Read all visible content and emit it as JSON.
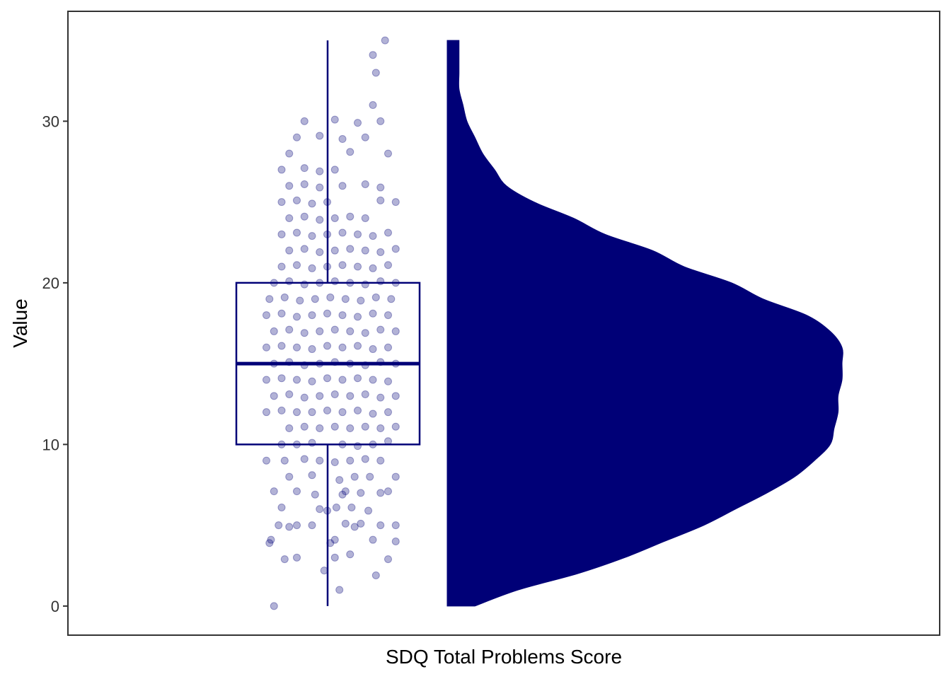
{
  "chart_data": {
    "type": "raincloud",
    "title": "",
    "xlabel": "SDQ Total Problems Score",
    "ylabel": "Value",
    "ylim": [
      -1.8,
      36.8
    ],
    "yticks": [
      0,
      10,
      20,
      30
    ],
    "grid": false,
    "legend": "none",
    "color": "#000077",
    "point_opacity": 0.3,
    "boxplot": {
      "min": 0,
      "q1": 10,
      "median": 15,
      "q3": 20,
      "max": 35
    },
    "density": {
      "y": [
        0,
        1,
        2,
        3,
        4,
        5,
        6,
        7,
        8,
        9,
        10,
        11,
        12,
        13,
        14,
        15,
        16,
        17,
        18,
        19,
        20,
        21,
        22,
        23,
        24,
        25,
        26,
        27,
        28,
        29,
        30,
        31,
        32,
        33,
        34,
        35
      ],
      "rel": [
        0.07,
        0.18,
        0.33,
        0.45,
        0.55,
        0.65,
        0.73,
        0.81,
        0.88,
        0.93,
        0.97,
        0.98,
        0.99,
        0.99,
        1.0,
        1.0,
        1.0,
        0.97,
        0.91,
        0.8,
        0.72,
        0.6,
        0.52,
        0.4,
        0.32,
        0.22,
        0.15,
        0.12,
        0.09,
        0.07,
        0.05,
        0.04,
        0.03,
        0.03,
        0.03,
        0.03
      ]
    },
    "points": [
      [
        0.82,
        33
      ],
      [
        0.8,
        34.1
      ],
      [
        0.88,
        35
      ],
      [
        0.15,
        0
      ],
      [
        0.58,
        1
      ],
      [
        0.82,
        1.9
      ],
      [
        0.48,
        2.2
      ],
      [
        0.9,
        2.9
      ],
      [
        0.22,
        2.9
      ],
      [
        0.3,
        3
      ],
      [
        0.55,
        3
      ],
      [
        0.65,
        3.2
      ],
      [
        0.12,
        3.9
      ],
      [
        0.52,
        3.9
      ],
      [
        0.95,
        4
      ],
      [
        0.13,
        4.1
      ],
      [
        0.8,
        4.1
      ],
      [
        0.55,
        4.1
      ],
      [
        0.18,
        5
      ],
      [
        0.3,
        5
      ],
      [
        0.4,
        5
      ],
      [
        0.62,
        5.1
      ],
      [
        0.85,
        5
      ],
      [
        0.95,
        5
      ],
      [
        0.25,
        4.9
      ],
      [
        0.68,
        4.9
      ],
      [
        0.72,
        5.1
      ],
      [
        0.2,
        6.1
      ],
      [
        0.45,
        6
      ],
      [
        0.5,
        5.9
      ],
      [
        0.56,
        6.1
      ],
      [
        0.66,
        6.1
      ],
      [
        0.77,
        5.9
      ],
      [
        0.15,
        7.1
      ],
      [
        0.3,
        7.1
      ],
      [
        0.42,
        6.9
      ],
      [
        0.62,
        7.1
      ],
      [
        0.9,
        7.1
      ],
      [
        0.6,
        6.9
      ],
      [
        0.85,
        7
      ],
      [
        0.72,
        7
      ],
      [
        0.25,
        8
      ],
      [
        0.4,
        8.1
      ],
      [
        0.58,
        7.8
      ],
      [
        0.68,
        8
      ],
      [
        0.78,
        8
      ],
      [
        0.95,
        8
      ],
      [
        0.1,
        9
      ],
      [
        0.22,
        9
      ],
      [
        0.35,
        9.1
      ],
      [
        0.45,
        9
      ],
      [
        0.55,
        8.9
      ],
      [
        0.65,
        9
      ],
      [
        0.75,
        9.1
      ],
      [
        0.85,
        9
      ],
      [
        0.2,
        10
      ],
      [
        0.4,
        10.1
      ],
      [
        0.6,
        10
      ],
      [
        0.8,
        10
      ],
      [
        0.9,
        10.2
      ],
      [
        0.3,
        10
      ],
      [
        0.7,
        9.9
      ],
      [
        0.25,
        11
      ],
      [
        0.35,
        11.1
      ],
      [
        0.45,
        11
      ],
      [
        0.55,
        11.1
      ],
      [
        0.65,
        11
      ],
      [
        0.75,
        11.1
      ],
      [
        0.85,
        11
      ],
      [
        0.95,
        11.1
      ],
      [
        0.1,
        12
      ],
      [
        0.2,
        12.1
      ],
      [
        0.3,
        12
      ],
      [
        0.4,
        12
      ],
      [
        0.5,
        12.1
      ],
      [
        0.6,
        12
      ],
      [
        0.7,
        12.1
      ],
      [
        0.8,
        11.9
      ],
      [
        0.9,
        12
      ],
      [
        0.15,
        13
      ],
      [
        0.25,
        13.1
      ],
      [
        0.35,
        12.9
      ],
      [
        0.45,
        13
      ],
      [
        0.55,
        13.1
      ],
      [
        0.65,
        13
      ],
      [
        0.75,
        13.1
      ],
      [
        0.85,
        12.9
      ],
      [
        0.95,
        13
      ],
      [
        0.1,
        14
      ],
      [
        0.2,
        14.1
      ],
      [
        0.3,
        14
      ],
      [
        0.4,
        13.9
      ],
      [
        0.5,
        14.1
      ],
      [
        0.6,
        14
      ],
      [
        0.7,
        14.1
      ],
      [
        0.8,
        14
      ],
      [
        0.9,
        13.9
      ],
      [
        0.15,
        15
      ],
      [
        0.25,
        15.1
      ],
      [
        0.35,
        14.9
      ],
      [
        0.45,
        15
      ],
      [
        0.55,
        15.1
      ],
      [
        0.65,
        15
      ],
      [
        0.75,
        14.9
      ],
      [
        0.85,
        15.1
      ],
      [
        0.95,
        15
      ],
      [
        0.1,
        16
      ],
      [
        0.2,
        16.1
      ],
      [
        0.3,
        16
      ],
      [
        0.4,
        15.9
      ],
      [
        0.5,
        16.1
      ],
      [
        0.6,
        16
      ],
      [
        0.7,
        16.1
      ],
      [
        0.8,
        15.9
      ],
      [
        0.9,
        16
      ],
      [
        0.15,
        17
      ],
      [
        0.25,
        17.1
      ],
      [
        0.35,
        16.9
      ],
      [
        0.45,
        17
      ],
      [
        0.55,
        17.1
      ],
      [
        0.65,
        17
      ],
      [
        0.75,
        16.9
      ],
      [
        0.85,
        17.1
      ],
      [
        0.95,
        17
      ],
      [
        0.1,
        18
      ],
      [
        0.2,
        18.1
      ],
      [
        0.3,
        17.9
      ],
      [
        0.4,
        18
      ],
      [
        0.5,
        18.1
      ],
      [
        0.6,
        18
      ],
      [
        0.7,
        17.9
      ],
      [
        0.8,
        18.1
      ],
      [
        0.9,
        18
      ],
      [
        0.12,
        19
      ],
      [
        0.22,
        19.1
      ],
      [
        0.32,
        18.9
      ],
      [
        0.42,
        19
      ],
      [
        0.52,
        19.1
      ],
      [
        0.62,
        19
      ],
      [
        0.72,
        18.9
      ],
      [
        0.82,
        19.1
      ],
      [
        0.92,
        19
      ],
      [
        0.15,
        20
      ],
      [
        0.25,
        20.1
      ],
      [
        0.35,
        19.9
      ],
      [
        0.45,
        20
      ],
      [
        0.55,
        20.1
      ],
      [
        0.65,
        20
      ],
      [
        0.75,
        19.9
      ],
      [
        0.85,
        20.1
      ],
      [
        0.95,
        20
      ],
      [
        0.2,
        21
      ],
      [
        0.3,
        21.1
      ],
      [
        0.4,
        20.9
      ],
      [
        0.5,
        21
      ],
      [
        0.6,
        21.1
      ],
      [
        0.7,
        21
      ],
      [
        0.8,
        20.9
      ],
      [
        0.9,
        21.1
      ],
      [
        0.25,
        22
      ],
      [
        0.35,
        22.1
      ],
      [
        0.45,
        21.9
      ],
      [
        0.55,
        22
      ],
      [
        0.65,
        22.1
      ],
      [
        0.75,
        22
      ],
      [
        0.85,
        21.9
      ],
      [
        0.95,
        22.1
      ],
      [
        0.2,
        23
      ],
      [
        0.3,
        23.1
      ],
      [
        0.4,
        22.9
      ],
      [
        0.5,
        23
      ],
      [
        0.6,
        23.1
      ],
      [
        0.7,
        23
      ],
      [
        0.8,
        22.9
      ],
      [
        0.9,
        23.1
      ],
      [
        0.25,
        24
      ],
      [
        0.35,
        24.1
      ],
      [
        0.45,
        23.9
      ],
      [
        0.55,
        24
      ],
      [
        0.65,
        24.1
      ],
      [
        0.75,
        24
      ],
      [
        0.2,
        25
      ],
      [
        0.3,
        25.1
      ],
      [
        0.4,
        24.9
      ],
      [
        0.5,
        25
      ],
      [
        0.85,
        25.1
      ],
      [
        0.95,
        25
      ],
      [
        0.25,
        26
      ],
      [
        0.35,
        26.1
      ],
      [
        0.45,
        25.9
      ],
      [
        0.6,
        26
      ],
      [
        0.75,
        26.1
      ],
      [
        0.85,
        25.9
      ],
      [
        0.2,
        27
      ],
      [
        0.35,
        27.1
      ],
      [
        0.45,
        26.9
      ],
      [
        0.55,
        27
      ],
      [
        0.25,
        28
      ],
      [
        0.65,
        28.1
      ],
      [
        0.9,
        28
      ],
      [
        0.3,
        29
      ],
      [
        0.45,
        29.1
      ],
      [
        0.6,
        28.9
      ],
      [
        0.75,
        29
      ],
      [
        0.35,
        30
      ],
      [
        0.55,
        30.1
      ],
      [
        0.7,
        29.9
      ],
      [
        0.85,
        30
      ],
      [
        0.8,
        31
      ]
    ]
  }
}
